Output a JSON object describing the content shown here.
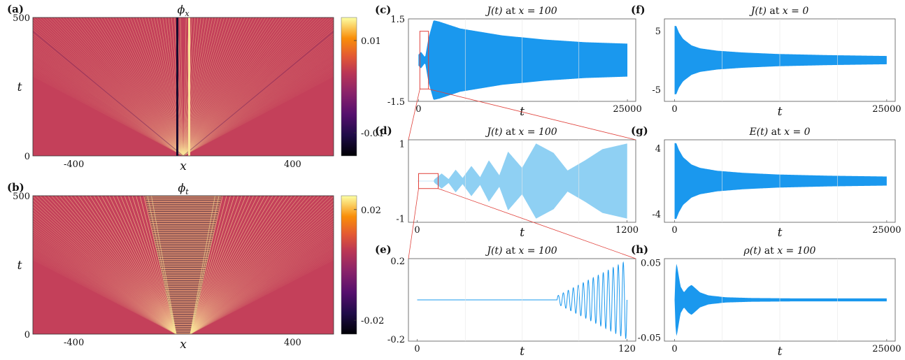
{
  "colors": {
    "heat_bg": "#c4405a",
    "heat_bright": "#fbe59a",
    "heat_dark": "#1a0b2e",
    "signal": "#1a98ee",
    "signal_light": "#8fd0f3",
    "inset": "#e0403a"
  },
  "chart_data": [
    {
      "id": "a",
      "panel_label": "(a)",
      "type": "heatmap",
      "title": "ϕ_x",
      "xlabel": "x",
      "ylabel": "t",
      "xlim": [
        -550,
        550
      ],
      "ylim": [
        0,
        500
      ],
      "xticks": [
        -400,
        400
      ],
      "yticks": [
        0,
        500
      ],
      "colorbar": {
        "min": -0.015,
        "max": 0.015,
        "ticks": [
          0.01,
          -0.01
        ]
      }
    },
    {
      "id": "b",
      "panel_label": "(b)",
      "type": "heatmap",
      "title": "ϕ_t",
      "xlabel": "x",
      "ylabel": "t",
      "xlim": [
        -550,
        550
      ],
      "ylim": [
        0,
        500
      ],
      "xticks": [
        -400,
        400
      ],
      "yticks": [
        0,
        500
      ],
      "colorbar": {
        "min": -0.025,
        "max": 0.025,
        "ticks": [
          0.02,
          -0.02
        ]
      }
    },
    {
      "id": "c",
      "panel_label": "(c)",
      "type": "area",
      "title_func": "J(t)",
      "title_cond": "x = 100",
      "xlabel": "t",
      "xlim": [
        -1200,
        26000
      ],
      "ylim": [
        -1.5,
        1.5
      ],
      "xticks": [
        0,
        25000
      ],
      "yticks": [
        1.5,
        -1.5
      ],
      "envelope": {
        "t": [
          0,
          300,
          800,
          1200,
          1800,
          2500,
          5000,
          10000,
          15000,
          20000,
          25000
        ],
        "amp": [
          0.2,
          0.3,
          0.1,
          0.8,
          1.45,
          1.4,
          1.15,
          0.9,
          0.75,
          0.65,
          0.6
        ]
      },
      "inset_box": {
        "x": [
          0,
          1200
        ],
        "y": [
          -1.05,
          1.05
        ]
      }
    },
    {
      "id": "d",
      "panel_label": "(d)",
      "type": "line",
      "title_func": "J(t)",
      "title_cond": "x = 100",
      "xlabel": "t",
      "xlim": [
        -50,
        1250
      ],
      "ylim": [
        -1.1,
        1.1
      ],
      "xticks": [
        0,
        1200
      ],
      "yticks": [
        1,
        -1
      ],
      "envelope": {
        "t": [
          0,
          95,
          100,
          140,
          180,
          220,
          260,
          310,
          360,
          410,
          470,
          520,
          600,
          680,
          780,
          860,
          960,
          1060,
          1200
        ],
        "amp": [
          0,
          0,
          0.05,
          0.2,
          0.05,
          0.3,
          0.08,
          0.4,
          0.1,
          0.55,
          0.15,
          0.78,
          0.35,
          1.0,
          0.75,
          0.28,
          0.55,
          0.85,
          1.0
        ]
      },
      "inset_box": {
        "x": [
          0,
          120
        ],
        "y": [
          -0.2,
          0.2
        ]
      }
    },
    {
      "id": "e",
      "panel_label": "(e)",
      "type": "line",
      "title_func": "J(t)",
      "title_cond": "x = 100",
      "xlabel": "t",
      "xlim": [
        -5,
        125
      ],
      "ylim": [
        -0.21,
        0.21
      ],
      "xticks": [
        0,
        120
      ],
      "yticks": [
        0.2,
        -0.2
      ],
      "signal": {
        "t_start": 80,
        "t_end": 120,
        "amp_start": 0.02,
        "amp_end": 0.2,
        "oscillations": 14
      }
    },
    {
      "id": "f",
      "panel_label": "(f)",
      "type": "area",
      "title_func": "J(t)",
      "title_cond": "x = 0",
      "xlabel": "t",
      "xlim": [
        -1200,
        26000
      ],
      "ylim": [
        -7,
        7
      ],
      "xticks": [
        0,
        25000
      ],
      "yticks": [
        5,
        -5
      ],
      "envelope": {
        "t": [
          0,
          200,
          500,
          1000,
          2000,
          3000,
          5000,
          8000,
          12000,
          18000,
          25000
        ],
        "amp": [
          5.8,
          5.8,
          4.7,
          3.6,
          2.5,
          2.0,
          1.6,
          1.3,
          1.05,
          0.85,
          0.7
        ]
      }
    },
    {
      "id": "g",
      "panel_label": "(g)",
      "type": "area",
      "title_func": "E(t)",
      "title_cond": "x = 0",
      "xlabel": "t",
      "xlim": [
        -1200,
        26000
      ],
      "ylim": [
        -5,
        5
      ],
      "xticks": [
        0,
        25000
      ],
      "yticks": [
        4,
        -4
      ],
      "envelope": {
        "t": [
          0,
          200,
          500,
          1000,
          2000,
          3000,
          5000,
          8000,
          12000,
          18000,
          25000
        ],
        "amp": [
          4.6,
          4.6,
          3.8,
          2.9,
          2.0,
          1.6,
          1.25,
          1.0,
          0.8,
          0.65,
          0.55
        ]
      }
    },
    {
      "id": "h",
      "panel_label": "(h)",
      "type": "area",
      "title_func": "ρ(t)",
      "title_cond": "x = 100",
      "xlabel": "t",
      "xlim": [
        -1200,
        26000
      ],
      "ylim": [
        -0.055,
        0.055
      ],
      "xticks": [
        0,
        25000
      ],
      "yticks": [
        0.05,
        -0.05
      ],
      "envelope": {
        "t": [
          0,
          150,
          300,
          700,
          1100,
          1600,
          2000,
          2500,
          3000,
          4000,
          6000,
          9000,
          14000,
          20000,
          25000
        ],
        "amp": [
          0.0,
          0.05,
          0.045,
          0.018,
          0.01,
          0.017,
          0.02,
          0.015,
          0.01,
          0.006,
          0.0035,
          0.0025,
          0.002,
          0.002,
          0.002
        ]
      }
    }
  ]
}
